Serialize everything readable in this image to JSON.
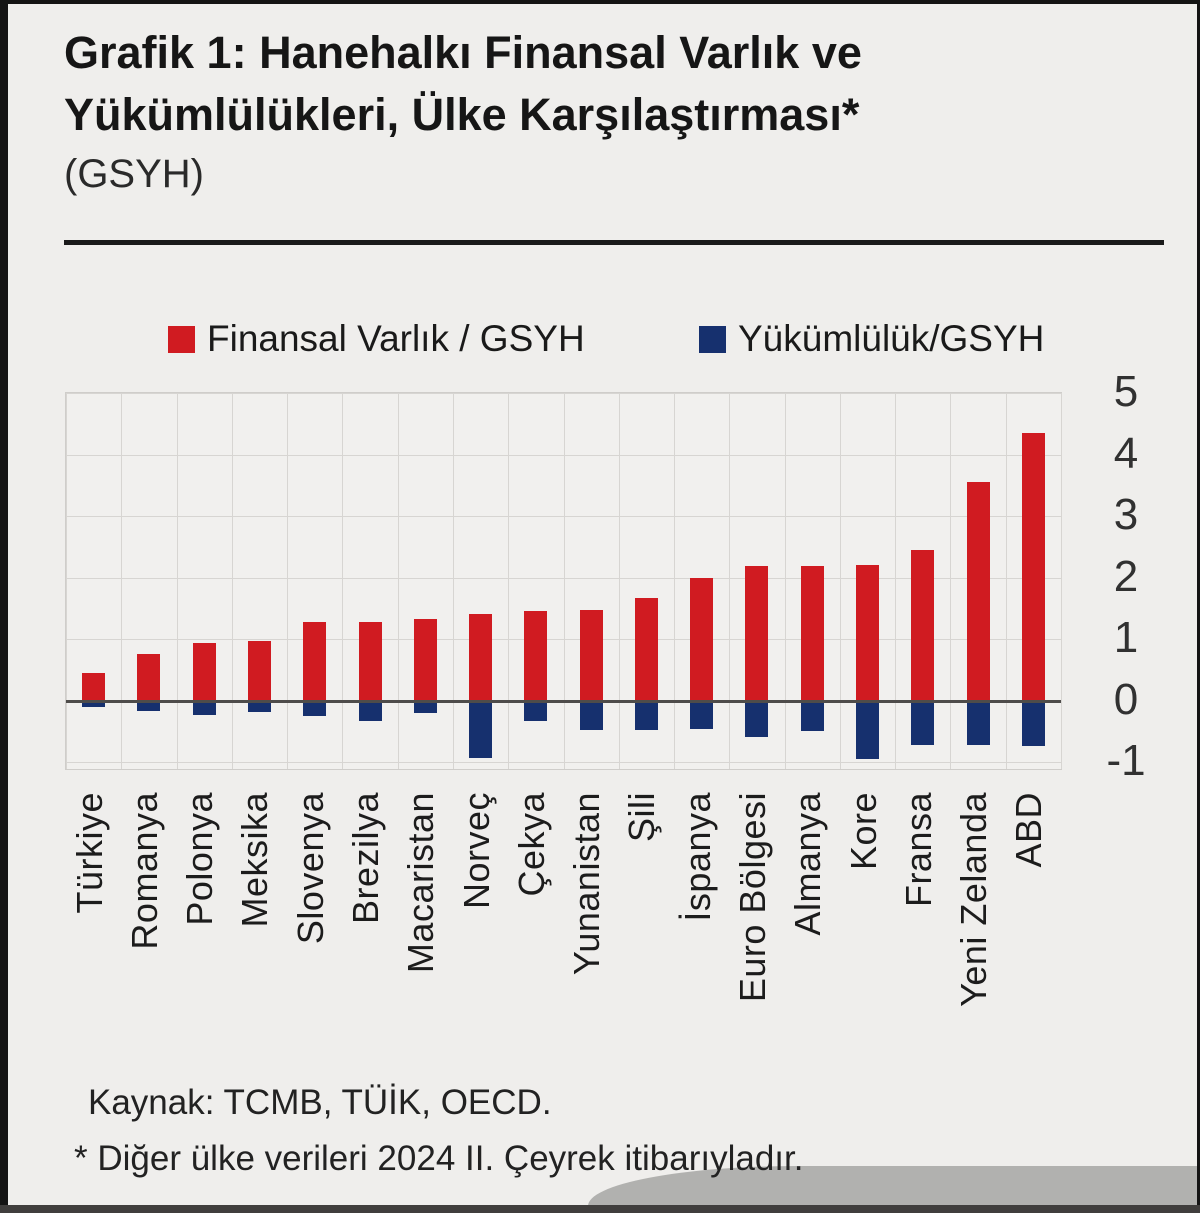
{
  "page": {
    "title_line1": "Grafik 1: Hanehalkı Finansal Varlık ve",
    "title_line2": "Yükümlülükleri, Ülke Karşılaştırması*",
    "subtitle": "(GSYH)",
    "source": "Kaynak: TCMB, TÜİK, OECD.",
    "footnote": "* Diğer ülke verileri 2024 II. Çeyrek itibarıyladır."
  },
  "colors": {
    "assets_red": "#d01b21",
    "liabilities_navy": "#16306e",
    "background": "#efeeec",
    "gridline": "#d7d5d2",
    "zero_line": "#4e4c4a"
  },
  "chart_data": {
    "type": "bar",
    "title": "Hanehalkı Finansal Varlık ve Yükümlülükleri, Ülke Karşılaştırması (GSYH)",
    "categories": [
      "Türkiye",
      "Romanya",
      "Polonya",
      "Meksika",
      "Slovenya",
      "Brezilya",
      "Macaristan",
      "Norveç",
      "Çekya",
      "Yunanistan",
      "Şili",
      "İspanya",
      "Euro Bölgesi",
      "Almanya",
      "Kore",
      "Fransa",
      "Yeni Zelanda",
      "ABD"
    ],
    "series": [
      {
        "name": "Finansal Varlık / GSYH",
        "color": "#d01b21",
        "values": [
          0.45,
          0.75,
          0.93,
          0.97,
          1.27,
          1.28,
          1.33,
          1.4,
          1.46,
          1.47,
          1.67,
          2.0,
          2.18,
          2.18,
          2.2,
          2.45,
          3.55,
          4.35
        ]
      },
      {
        "name": "Yükümlülük/GSYH",
        "color": "#16306e",
        "values": [
          -0.1,
          -0.17,
          -0.23,
          -0.19,
          -0.26,
          -0.33,
          -0.2,
          -0.93,
          -0.33,
          -0.48,
          -0.48,
          -0.47,
          -0.59,
          -0.49,
          -0.95,
          -0.73,
          -0.73,
          -0.74
        ]
      }
    ],
    "xlabel": "",
    "ylabel": "",
    "ylim": [
      -1,
      5
    ],
    "yticks": [
      5,
      4,
      3,
      2,
      1,
      0,
      -1
    ],
    "grid": true,
    "legend_position": "top",
    "bar_orientation": "vertical"
  }
}
